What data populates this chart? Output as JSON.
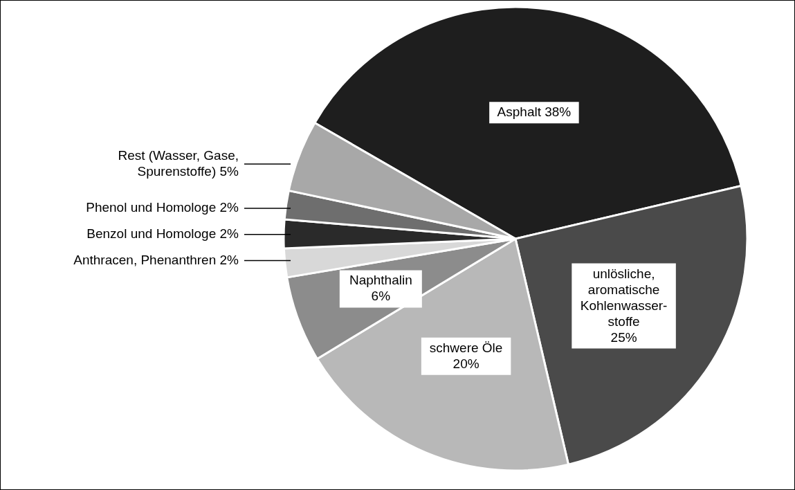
{
  "chart_data": {
    "type": "pie",
    "categories": [
      "Asphalt",
      "unlösliche,\naromatische\nKohlenwasser-\nstoffe",
      "schwere Öle",
      "Naphthalin",
      "Anthracen, Phenanthren",
      "Benzol und Homologe",
      "Phenol und Homologe",
      "Rest (Wasser, Gase,\nSpurenstoffe)"
    ],
    "values": [
      38,
      25,
      20,
      6,
      2,
      2,
      2,
      5
    ],
    "value_labels": [
      "38%",
      "25%",
      "20%",
      "6%",
      "2%",
      "2%",
      "2%",
      "5%"
    ],
    "colors": [
      "#1e1e1e",
      "#4a4a4a",
      "#b8b8b8",
      "#8c8c8c",
      "#d8d8d8",
      "#2a2a2a",
      "#6e6e6e",
      "#a8a8a8"
    ]
  }
}
